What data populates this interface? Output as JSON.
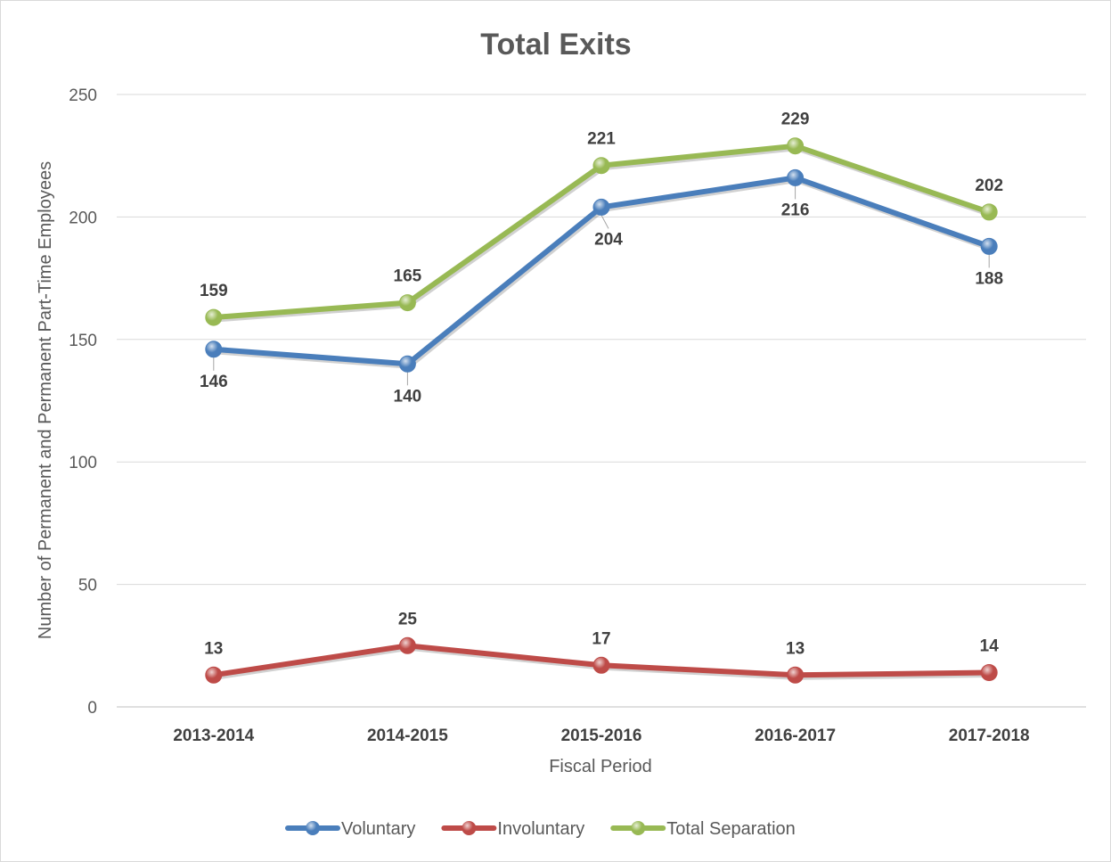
{
  "chart_data": {
    "type": "line",
    "title": "Total Exits",
    "xlabel": "Fiscal Period",
    "ylabel": "Number of Permanent and Permanent Part-Time Employees",
    "categories": [
      "2013-2014",
      "2014-2015",
      "2015-2016",
      "2016-2017",
      "2017-2018"
    ],
    "ylim": [
      0,
      250
    ],
    "yticks": [
      0,
      50,
      100,
      150,
      200,
      250
    ],
    "grid": true,
    "legend_position": "bottom",
    "series": [
      {
        "name": "Voluntary",
        "values": [
          146,
          140,
          204,
          216,
          188
        ],
        "color": "#4a7ebb",
        "label_position": "below"
      },
      {
        "name": "Involuntary",
        "values": [
          13,
          25,
          17,
          13,
          14
        ],
        "color": "#be4b48",
        "label_position": "above"
      },
      {
        "name": "Total Separation",
        "values": [
          159,
          165,
          221,
          229,
          202
        ],
        "color": "#98b954",
        "label_position": "above"
      }
    ]
  }
}
